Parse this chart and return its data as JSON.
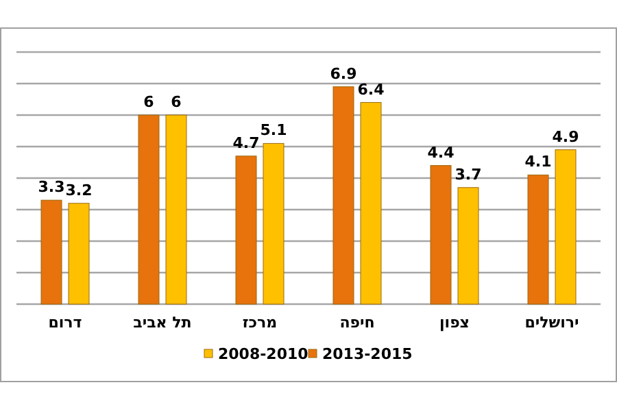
{
  "chart_data": {
    "type": "bar",
    "categories": [
      "דרום",
      "תל אביב",
      "מרכז",
      "חיפה",
      "צפון",
      "ירושלים"
    ],
    "series": [
      {
        "name": "2013-2015",
        "color": "#e8720c",
        "values": [
          3.3,
          6,
          4.7,
          6.9,
          4.4,
          4.1
        ]
      },
      {
        "name": "2008-2010",
        "color": "#ffc000",
        "values": [
          3.2,
          6,
          5.1,
          6.4,
          3.7,
          4.9
        ]
      }
    ],
    "ylim": [
      0,
      8
    ],
    "yticks": [
      {
        "value": 0,
        "label": null
      },
      {
        "value": 1,
        "label": null
      },
      {
        "value": 2,
        "label": null
      },
      {
        "value": 3,
        "label": null
      },
      {
        "value": 4,
        "label": null
      },
      {
        "value": 5,
        "label": null
      },
      {
        "value": 6,
        "label": null
      },
      {
        "value": 7,
        "label": null
      },
      {
        "value": 8,
        "label": null
      }
    ],
    "tick_labels": "x",
    "grid": "y",
    "data_labels": true,
    "legend": "bottom"
  }
}
